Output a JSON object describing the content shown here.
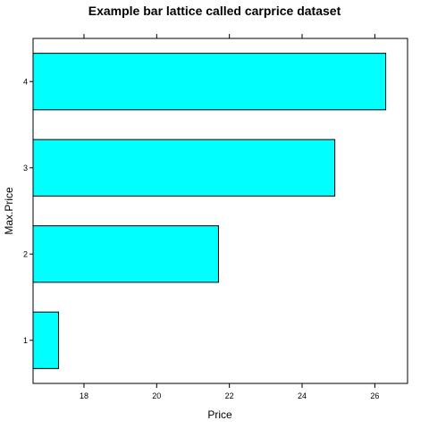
{
  "chart_data": {
    "type": "bar",
    "orientation": "horizontal",
    "title": "Example bar lattice called carprice dataset",
    "xlabel": "Price",
    "ylabel": "Max.Price",
    "categories": [
      "1",
      "2",
      "3",
      "4"
    ],
    "values": [
      17.3,
      21.7,
      24.9,
      26.3
    ],
    "xlim": [
      16.6,
      26.9
    ],
    "xticks": [
      18,
      20,
      22,
      24,
      26
    ],
    "xtick_labels": [
      "18",
      "20",
      "22",
      "24",
      "26"
    ],
    "bar_color": "#00ffff",
    "bar_edge_color": "#000000",
    "grid": false
  }
}
